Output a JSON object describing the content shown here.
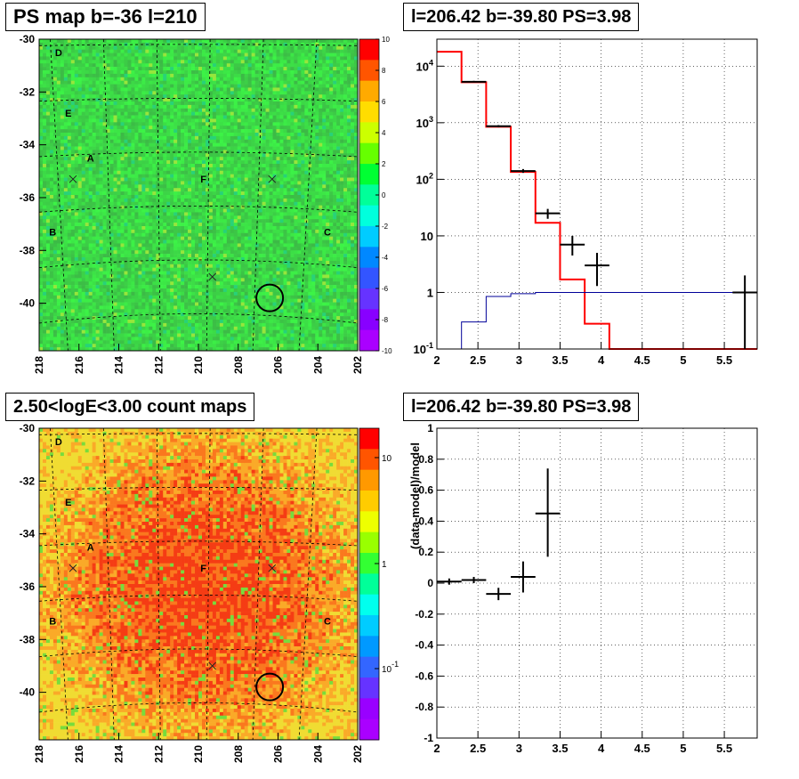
{
  "panels": {
    "tl_title": "PS map b=-36 l=210",
    "tr_title": "l=206.42 b=-39.80 PS=3.98",
    "bl_title": "2.50<logE<3.00 count maps",
    "br_title": "l=206.42 b=-39.80 PS=3.98"
  },
  "chart_data": [
    {
      "id": "ps_map",
      "type": "heatmap",
      "title": "PS map b=-36 l=210",
      "x_ticks": [
        "218",
        "216",
        "214",
        "212",
        "210",
        "208",
        "206",
        "204",
        "202"
      ],
      "y_ticks": [
        "-30",
        "-32",
        "-34",
        "-36",
        "-38",
        "-40"
      ],
      "xlim": [
        218,
        202
      ],
      "ylim": [
        -41.8,
        -30
      ],
      "colorbar_ticks": [
        "10",
        "8",
        "6",
        "4",
        "2",
        "0",
        "-2",
        "-4",
        "-6",
        "-8",
        "-10"
      ],
      "zlim": [
        -10,
        10
      ],
      "sources": [
        {
          "label": "D",
          "l": 217.2,
          "b": -30.5
        },
        {
          "label": "E",
          "l": 216.7,
          "b": -32.8
        },
        {
          "label": "A",
          "l": 215.6,
          "b": -34.5
        },
        {
          "label": "F",
          "l": 209.9,
          "b": -35.3
        },
        {
          "label": "B",
          "l": 217.5,
          "b": -37.3
        },
        {
          "label": "C",
          "l": 203.7,
          "b": -37.3
        }
      ],
      "markers_x": [
        {
          "l": 216.3,
          "b": -35.3
        },
        {
          "l": 206.3,
          "b": -35.3
        },
        {
          "l": 209.3,
          "b": -39.0
        }
      ],
      "circle": {
        "l": 206.42,
        "b": -39.8
      }
    },
    {
      "id": "spectrum",
      "type": "line",
      "title": "l=206.42 b=-39.80 PS=3.98",
      "xlim": [
        2,
        5.9
      ],
      "ylim": [
        0.1,
        30000
      ],
      "ylog": true,
      "x_ticks": [
        "2",
        "2.5",
        "3",
        "3.5",
        "4",
        "4.5",
        "5",
        "5.5"
      ],
      "y_ticks": [
        "10^-1",
        "1",
        "10",
        "10^2",
        "10^3",
        "10^4"
      ],
      "bin_edges": [
        2.0,
        2.3,
        2.6,
        2.9,
        3.2,
        3.5,
        3.8,
        4.1,
        4.4,
        4.7,
        5.0,
        5.3,
        5.6,
        5.9
      ],
      "series": [
        {
          "color": "#ff0000",
          "values": [
            18000,
            5200,
            850,
            135,
            17,
            1.7,
            0.28,
            0.1,
            0.1,
            0.1,
            0.1,
            0.1,
            0.1
          ]
        },
        {
          "color": "#000099",
          "values": [
            0.1,
            0.3,
            0.85,
            0.95,
            1,
            1,
            1,
            1,
            1,
            1,
            1,
            1,
            1
          ]
        }
      ],
      "data_points": [
        {
          "x": 2.45,
          "xerr": 0.15,
          "y": 5300,
          "ylo": 5100,
          "yhi": 5500
        },
        {
          "x": 2.75,
          "xerr": 0.15,
          "y": 870,
          "ylo": 830,
          "yhi": 910
        },
        {
          "x": 3.05,
          "xerr": 0.15,
          "y": 140,
          "ylo": 130,
          "yhi": 152
        },
        {
          "x": 3.35,
          "xerr": 0.15,
          "y": 25,
          "ylo": 20,
          "yhi": 30
        },
        {
          "x": 3.65,
          "xerr": 0.15,
          "y": 7,
          "ylo": 4.5,
          "yhi": 10
        },
        {
          "x": 3.95,
          "xerr": 0.15,
          "y": 3,
          "ylo": 1.3,
          "yhi": 5
        },
        {
          "x": 5.75,
          "xerr": 0.15,
          "y": 1,
          "ylo": 0.1,
          "yhi": 2
        }
      ]
    },
    {
      "id": "count_map",
      "type": "heatmap",
      "title": "2.50<logE<3.00 count maps",
      "x_ticks": [
        "218",
        "216",
        "214",
        "212",
        "210",
        "208",
        "206",
        "204",
        "202"
      ],
      "y_ticks": [
        "-30",
        "-32",
        "-34",
        "-36",
        "-38",
        "-40"
      ],
      "xlim": [
        218,
        202
      ],
      "ylim": [
        -41.8,
        -30
      ],
      "colorbar_ticks": [
        "10",
        "1",
        "10^-1"
      ],
      "zlog": true,
      "sources": [
        {
          "label": "D",
          "l": 217.2,
          "b": -30.5
        },
        {
          "label": "E",
          "l": 216.7,
          "b": -32.8
        },
        {
          "label": "A",
          "l": 215.6,
          "b": -34.5
        },
        {
          "label": "F",
          "l": 209.9,
          "b": -35.3
        },
        {
          "label": "B",
          "l": 217.5,
          "b": -37.3
        },
        {
          "label": "C",
          "l": 203.7,
          "b": -37.3
        }
      ],
      "markers_x": [
        {
          "l": 216.3,
          "b": -35.3
        },
        {
          "l": 206.3,
          "b": -35.3
        },
        {
          "l": 209.3,
          "b": -39.0
        }
      ],
      "circle": {
        "l": 206.42,
        "b": -39.8
      }
    },
    {
      "id": "residuals",
      "type": "scatter",
      "title": "l=206.42 b=-39.80 PS=3.98",
      "ylabel": "(data-model)/model",
      "xlim": [
        2,
        5.9
      ],
      "ylim": [
        -1,
        1
      ],
      "x_ticks": [
        "2",
        "2.5",
        "3",
        "3.5",
        "4",
        "4.5",
        "5",
        "5.5"
      ],
      "y_ticks": [
        "-1",
        "-0.8",
        "-0.6",
        "-0.4",
        "-0.2",
        "0",
        "0.2",
        "0.4",
        "0.6",
        "0.8",
        "1"
      ],
      "data_points": [
        {
          "x": 2.15,
          "xerr": 0.15,
          "y": 0.01,
          "ylo": -0.01,
          "yhi": 0.03
        },
        {
          "x": 2.45,
          "xerr": 0.15,
          "y": 0.02,
          "ylo": 0.0,
          "yhi": 0.04
        },
        {
          "x": 2.75,
          "xerr": 0.15,
          "y": -0.07,
          "ylo": -0.11,
          "yhi": -0.03
        },
        {
          "x": 3.05,
          "xerr": 0.15,
          "y": 0.04,
          "ylo": -0.06,
          "yhi": 0.14
        },
        {
          "x": 3.35,
          "xerr": 0.15,
          "y": 0.45,
          "ylo": 0.17,
          "yhi": 0.74
        }
      ]
    }
  ]
}
